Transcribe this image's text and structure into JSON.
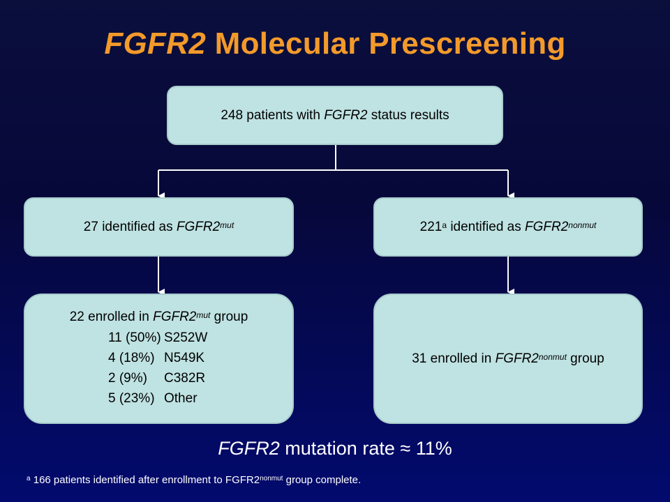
{
  "title": {
    "italic": "FGFR2",
    "rest": " Molecular Prescreening"
  },
  "top_box": {
    "pre": "248 patients with ",
    "gene": "FGFR2",
    "post": " status results"
  },
  "mut_box": {
    "pre": "27 identified as ",
    "gene": "FGFR2",
    "sup": "mut"
  },
  "nonmut_box": {
    "count": "221",
    "footnote_marker": "a",
    "pre": " identified as ",
    "gene": "FGFR2",
    "sup": "nonmut"
  },
  "enrolled_mut": {
    "pre": "22 enrolled in ",
    "gene": "FGFR2",
    "sup": "mut",
    "post": " group",
    "breakdown": [
      {
        "count": "11 (50%)",
        "name": "S252W"
      },
      {
        "count": "4 (18%)",
        "name": "N549K"
      },
      {
        "count": "2 (9%)",
        "name": "C382R"
      },
      {
        "count": "5 (23%)",
        "name": "Other"
      }
    ]
  },
  "enrolled_nonmut": {
    "pre": "31 enrolled in ",
    "gene": "FGFR2",
    "sup": "nonmut",
    "post": " group"
  },
  "mutation_rate": {
    "gene": "FGFR2",
    "text": " mutation rate ",
    "symbol": "≈",
    "value": " 11%"
  },
  "footnote": {
    "marker": "a",
    "text": " 166 patients identified after enrollment to FGFR2",
    "sup": "nonmut",
    "post": " group complete."
  },
  "colors": {
    "title": "#f39a2a",
    "box_fill": "#bfe2e2",
    "background": "#06083a",
    "connector": "#ffffff"
  }
}
